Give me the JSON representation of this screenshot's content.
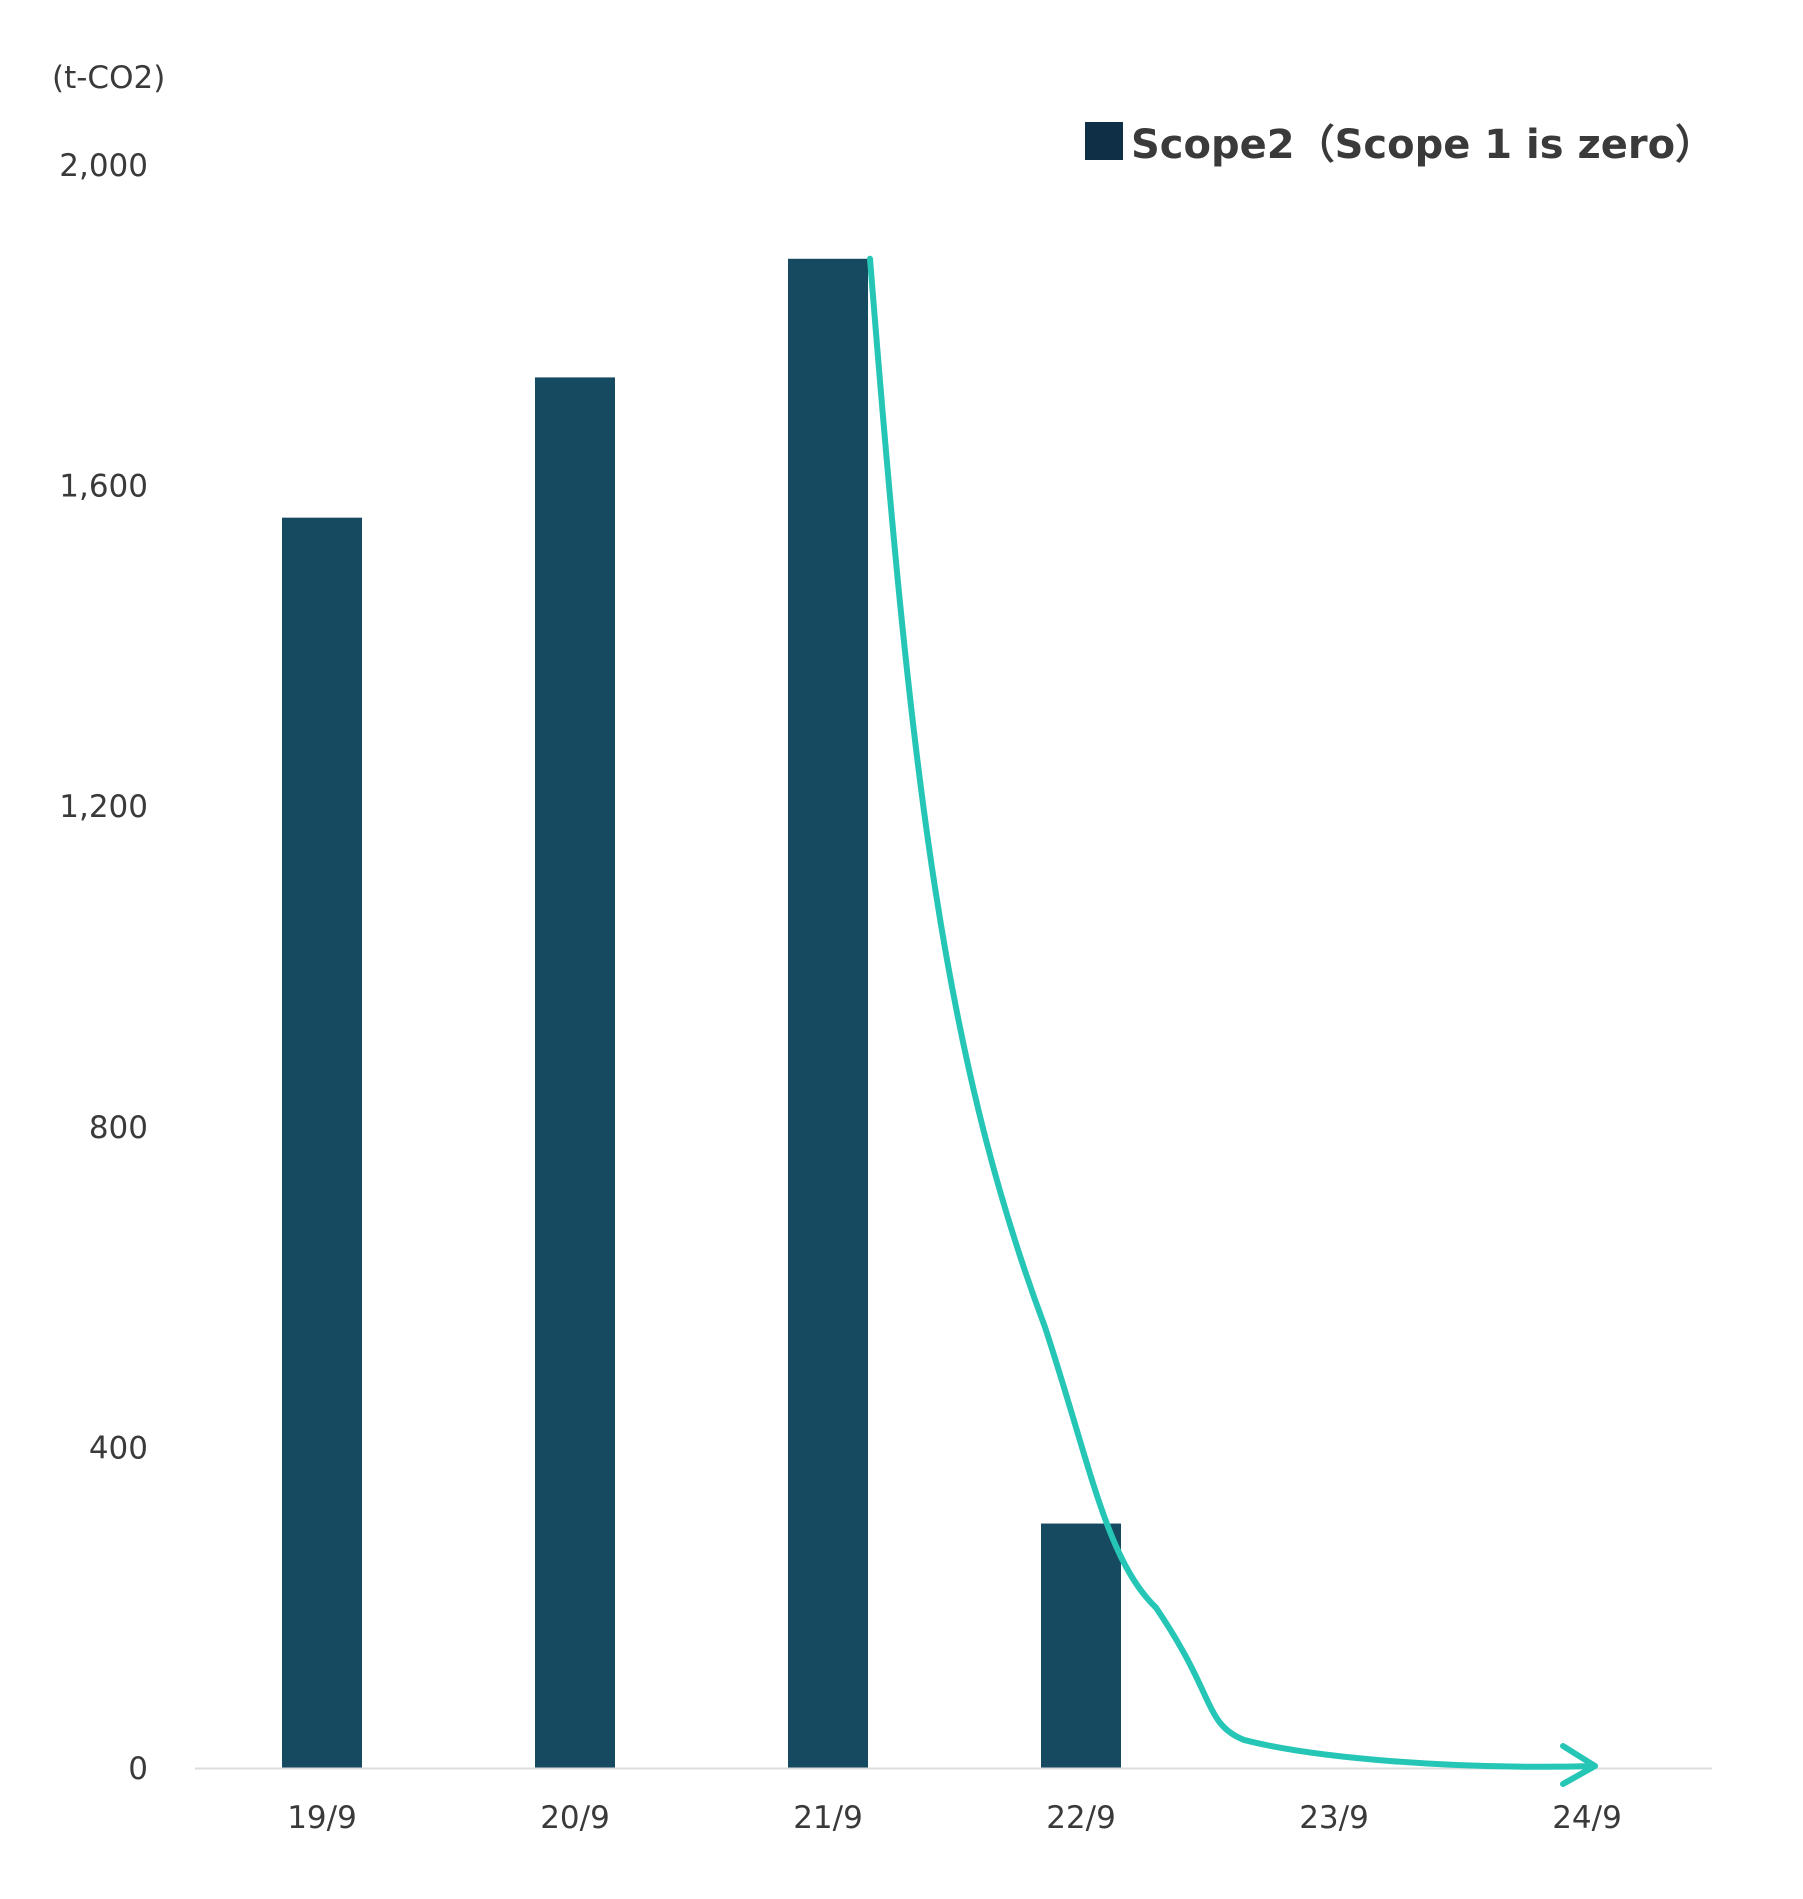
{
  "chart_data": {
    "type": "bar",
    "unit_label": "(t-CO2)",
    "categories": [
      "19/9",
      "20/9",
      "21/9",
      "22/9",
      "23/9",
      "24/9"
    ],
    "series": [
      {
        "name": "Scope2（Scope 1 is zero）",
        "values": [
          1560,
          1735,
          1883,
          305,
          0,
          0
        ]
      }
    ],
    "ylim": [
      0,
      2000
    ],
    "yticks": [
      0,
      400,
      800,
      1200,
      1600,
      2000
    ],
    "ytick_labels": [
      "0",
      "400",
      "800",
      "1,200",
      "1,600",
      "2,000"
    ],
    "grid": false,
    "legend_position": "top-right",
    "trend_arrow": {
      "description_color_only": true,
      "points": [
        {
          "x": "21/9",
          "y": 1883
        },
        {
          "x": "22/9",
          "y": 300
        },
        {
          "x": "23/9",
          "y": 10
        },
        {
          "x": "24/9",
          "y": 0
        }
      ]
    },
    "colors": {
      "bar": "#164a61",
      "legend_swatch": "#0f2f47",
      "trend": "#26c6b6",
      "axis": "#dddddd",
      "text": "#3a3a3a"
    }
  }
}
